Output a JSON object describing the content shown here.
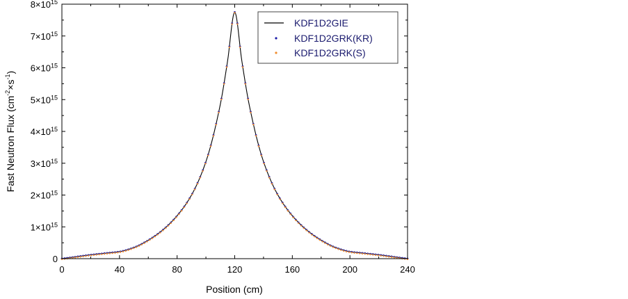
{
  "chart_data": {
    "type": "line",
    "title": "",
    "xlabel": "Position (cm)",
    "ylabel_parts": {
      "prefix": "Fast Neutron Flux (cm",
      "exp1": "-2",
      "mid": "×s",
      "exp2": "-1",
      "suffix": ")"
    },
    "xlim": [
      0,
      240
    ],
    "ylim": [
      0,
      8000000000000000.0
    ],
    "x_ticks": [
      0,
      40,
      80,
      120,
      160,
      200,
      240
    ],
    "x_tick_labels": [
      "0",
      "40",
      "80",
      "120",
      "160",
      "200",
      "240"
    ],
    "y_ticks": [
      {
        "value": 0,
        "mantissa": "0",
        "exponent": ""
      },
      {
        "value": 1000000000000000.0,
        "mantissa": "1×10",
        "exponent": "15"
      },
      {
        "value": 2000000000000000.0,
        "mantissa": "2×10",
        "exponent": "15"
      },
      {
        "value": 3000000000000000.0,
        "mantissa": "3×10",
        "exponent": "15"
      },
      {
        "value": 4000000000000000.0,
        "mantissa": "4×10",
        "exponent": "15"
      },
      {
        "value": 5000000000000000.0,
        "mantissa": "5×10",
        "exponent": "15"
      },
      {
        "value": 6000000000000000.0,
        "mantissa": "6×10",
        "exponent": "15"
      },
      {
        "value": 7000000000000000.0,
        "mantissa": "7×10",
        "exponent": "15"
      },
      {
        "value": 8000000000000000.0,
        "mantissa": "8×10",
        "exponent": "15"
      }
    ],
    "legend_position": "top-right",
    "x": [
      0,
      10,
      20,
      30,
      40,
      50,
      60,
      70,
      80,
      90,
      100,
      110,
      115,
      120,
      125,
      130,
      140,
      150,
      160,
      170,
      180,
      190,
      200,
      210,
      220,
      230,
      240
    ],
    "series": [
      {
        "name": "KDF1D2GIE",
        "style": "line",
        "color": "#000000",
        "values": [
          0,
          60000000000000.0,
          120000000000000.0,
          170000000000000.0,
          220000000000000.0,
          350000000000000.0,
          580000000000000.0,
          900000000000000.0,
          1350000000000000.0,
          2000000000000000.0,
          3050000000000000.0,
          4850000000000000.0,
          6200000000000000.0,
          7750000000000000.0,
          6200000000000000.0,
          4850000000000000.0,
          3050000000000000.0,
          2000000000000000.0,
          1350000000000000.0,
          900000000000000.0,
          580000000000000.0,
          350000000000000.0,
          220000000000000.0,
          170000000000000.0,
          120000000000000.0,
          60000000000000.0,
          0
        ]
      },
      {
        "name": "KDF1D2GRK(KR)",
        "style": "markers",
        "color": "#1c1ca8",
        "values": [
          0,
          60000000000000.0,
          120000000000000.0,
          170000000000000.0,
          220000000000000.0,
          350000000000000.0,
          580000000000000.0,
          900000000000000.0,
          1350000000000000.0,
          2000000000000000.0,
          3050000000000000.0,
          4850000000000000.0,
          6200000000000000.0,
          7750000000000000.0,
          6200000000000000.0,
          4850000000000000.0,
          3050000000000000.0,
          2000000000000000.0,
          1350000000000000.0,
          900000000000000.0,
          580000000000000.0,
          350000000000000.0,
          220000000000000.0,
          170000000000000.0,
          120000000000000.0,
          60000000000000.0,
          0
        ]
      },
      {
        "name": "KDF1D2GRK(S)",
        "style": "markers",
        "color": "#f08c2e",
        "values": [
          0,
          60000000000000.0,
          120000000000000.0,
          170000000000000.0,
          220000000000000.0,
          350000000000000.0,
          580000000000000.0,
          900000000000000.0,
          1350000000000000.0,
          2000000000000000.0,
          3050000000000000.0,
          4850000000000000.0,
          6200000000000000.0,
          7750000000000000.0,
          6200000000000000.0,
          4850000000000000.0,
          3050000000000000.0,
          2000000000000000.0,
          1350000000000000.0,
          900000000000000.0,
          580000000000000.0,
          350000000000000.0,
          220000000000000.0,
          170000000000000.0,
          120000000000000.0,
          60000000000000.0,
          0
        ]
      }
    ]
  }
}
